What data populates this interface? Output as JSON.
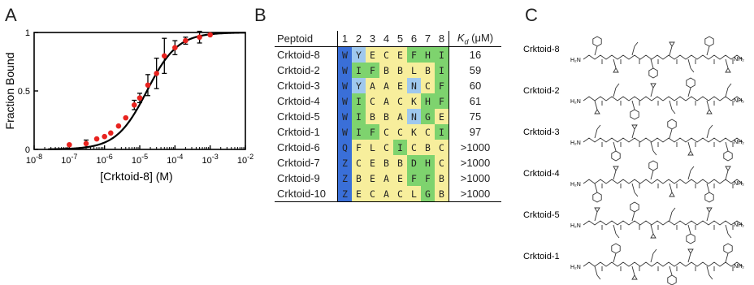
{
  "panels": {
    "a": "A",
    "b": "B",
    "c": "C"
  },
  "chart_data": {
    "type": "scatter",
    "xlabel": "[Crktoid-8] (M)",
    "ylabel": "Fraction Bound",
    "x_scale": "log",
    "xlim": [
      1e-08,
      0.01
    ],
    "ylim": [
      0,
      1
    ],
    "x_ticks": [
      "10-8",
      "10-7",
      "10-6",
      "10-5",
      "10-4",
      "10-3",
      "10-2"
    ],
    "y_ticks": [
      "0",
      "0.5",
      "1"
    ],
    "points": [
      {
        "x": 1e-07,
        "y": 0.04,
        "err": 0
      },
      {
        "x": 3e-07,
        "y": 0.05,
        "err": 0.03
      },
      {
        "x": 6e-07,
        "y": 0.09,
        "err": 0
      },
      {
        "x": 1e-06,
        "y": 0.11,
        "err": 0
      },
      {
        "x": 1.5e-06,
        "y": 0.14,
        "err": 0
      },
      {
        "x": 2.5e-06,
        "y": 0.2,
        "err": 0
      },
      {
        "x": 4e-06,
        "y": 0.27,
        "err": 0
      },
      {
        "x": 7e-06,
        "y": 0.38,
        "err": 0.04
      },
      {
        "x": 1e-05,
        "y": 0.44,
        "err": 0.04
      },
      {
        "x": 1.7e-05,
        "y": 0.55,
        "err": 0.09
      },
      {
        "x": 3e-05,
        "y": 0.65,
        "err": 0.13
      },
      {
        "x": 5e-05,
        "y": 0.8,
        "err": 0.15
      },
      {
        "x": 0.0001,
        "y": 0.87,
        "err": 0.06
      },
      {
        "x": 0.0002,
        "y": 0.93,
        "err": 0.03
      },
      {
        "x": 0.0005,
        "y": 0.96,
        "err": 0.05
      },
      {
        "x": 0.001,
        "y": 0.98,
        "err": 0
      }
    ],
    "fit": {
      "model": "hill",
      "kd": 1.6e-05,
      "n": 1
    }
  },
  "table": {
    "header": {
      "peptide": "Peptoid",
      "positions": [
        "1",
        "2",
        "3",
        "4",
        "5",
        "6",
        "7",
        "8"
      ],
      "kd_symbol": "K",
      "kd_sub": "d",
      "kd_unit": "(μM)"
    },
    "rows": [
      {
        "name": "Crktoid-8",
        "residues": [
          "W",
          "Y",
          "E",
          "C",
          "E",
          "F",
          "H",
          "I"
        ],
        "colors": [
          "#3a6fd8",
          "#9fc8ee",
          "#f7ee9c",
          "#f7ee9c",
          "#f7ee9c",
          "#7ed36e",
          "#7ed36e",
          "#7ed36e"
        ],
        "kd": "16"
      },
      {
        "name": "Crktoid-2",
        "residues": [
          "W",
          "I",
          "F",
          "B",
          "B",
          "L",
          "B",
          "I"
        ],
        "colors": [
          "#3a6fd8",
          "#7ed36e",
          "#7ed36e",
          "#f7ee9c",
          "#f7ee9c",
          "#f7ee9c",
          "#f7ee9c",
          "#7ed36e"
        ],
        "kd": "59"
      },
      {
        "name": "Crktoid-3",
        "residues": [
          "W",
          "Y",
          "A",
          "A",
          "E",
          "N",
          "C",
          "F"
        ],
        "colors": [
          "#3a6fd8",
          "#9fc8ee",
          "#f7ee9c",
          "#f7ee9c",
          "#f7ee9c",
          "#9fc8ee",
          "#f7ee9c",
          "#7ed36e"
        ],
        "kd": "60"
      },
      {
        "name": "Crktoid-4",
        "residues": [
          "W",
          "I",
          "C",
          "A",
          "C",
          "K",
          "H",
          "F"
        ],
        "colors": [
          "#3a6fd8",
          "#7ed36e",
          "#f7ee9c",
          "#f7ee9c",
          "#f7ee9c",
          "#f7ee9c",
          "#7ed36e",
          "#7ed36e"
        ],
        "kd": "61"
      },
      {
        "name": "Crktoid-5",
        "residues": [
          "W",
          "I",
          "B",
          "B",
          "A",
          "N",
          "G",
          "E"
        ],
        "colors": [
          "#3a6fd8",
          "#7ed36e",
          "#f7ee9c",
          "#f7ee9c",
          "#f7ee9c",
          "#9fc8ee",
          "#7ed36e",
          "#f7ee9c"
        ],
        "kd": "75"
      },
      {
        "name": "Crktoid-1",
        "residues": [
          "W",
          "I",
          "F",
          "C",
          "C",
          "K",
          "C",
          "I"
        ],
        "colors": [
          "#3a6fd8",
          "#7ed36e",
          "#7ed36e",
          "#f7ee9c",
          "#f7ee9c",
          "#f7ee9c",
          "#f7ee9c",
          "#7ed36e"
        ],
        "kd": "97"
      },
      {
        "name": "Crktoid-6",
        "residues": [
          "Q",
          "F",
          "L",
          "C",
          "I",
          "C",
          "B",
          "C"
        ],
        "colors": [
          "#3a6fd8",
          "#f7ee9c",
          "#f7ee9c",
          "#f7ee9c",
          "#7ed36e",
          "#f7ee9c",
          "#f7ee9c",
          "#f7ee9c"
        ],
        "kd": ">1000"
      },
      {
        "name": "Crktoid-7",
        "residues": [
          "Z",
          "C",
          "E",
          "B",
          "B",
          "D",
          "H",
          "C"
        ],
        "colors": [
          "#3a6fd8",
          "#f7ee9c",
          "#f7ee9c",
          "#f7ee9c",
          "#f7ee9c",
          "#7ed36e",
          "#7ed36e",
          "#f7ee9c"
        ],
        "kd": ">1000"
      },
      {
        "name": "Crktoid-9",
        "residues": [
          "Z",
          "B",
          "E",
          "A",
          "E",
          "F",
          "F",
          "B"
        ],
        "colors": [
          "#3a6fd8",
          "#f7ee9c",
          "#f7ee9c",
          "#f7ee9c",
          "#f7ee9c",
          "#7ed36e",
          "#7ed36e",
          "#f7ee9c"
        ],
        "kd": ">1000"
      },
      {
        "name": "Crktoid-10",
        "residues": [
          "Z",
          "E",
          "C",
          "A",
          "C",
          "L",
          "G",
          "B"
        ],
        "colors": [
          "#3a6fd8",
          "#f7ee9c",
          "#f7ee9c",
          "#f7ee9c",
          "#f7ee9c",
          "#f7ee9c",
          "#7ed36e",
          "#f7ee9c"
        ],
        "kd": ">1000"
      }
    ]
  },
  "structures": {
    "labels": [
      "Crktoid-8",
      "Crktoid-2",
      "Crktoid-3",
      "Crktoid-4",
      "Crktoid-5",
      "Crktoid-1"
    ]
  }
}
